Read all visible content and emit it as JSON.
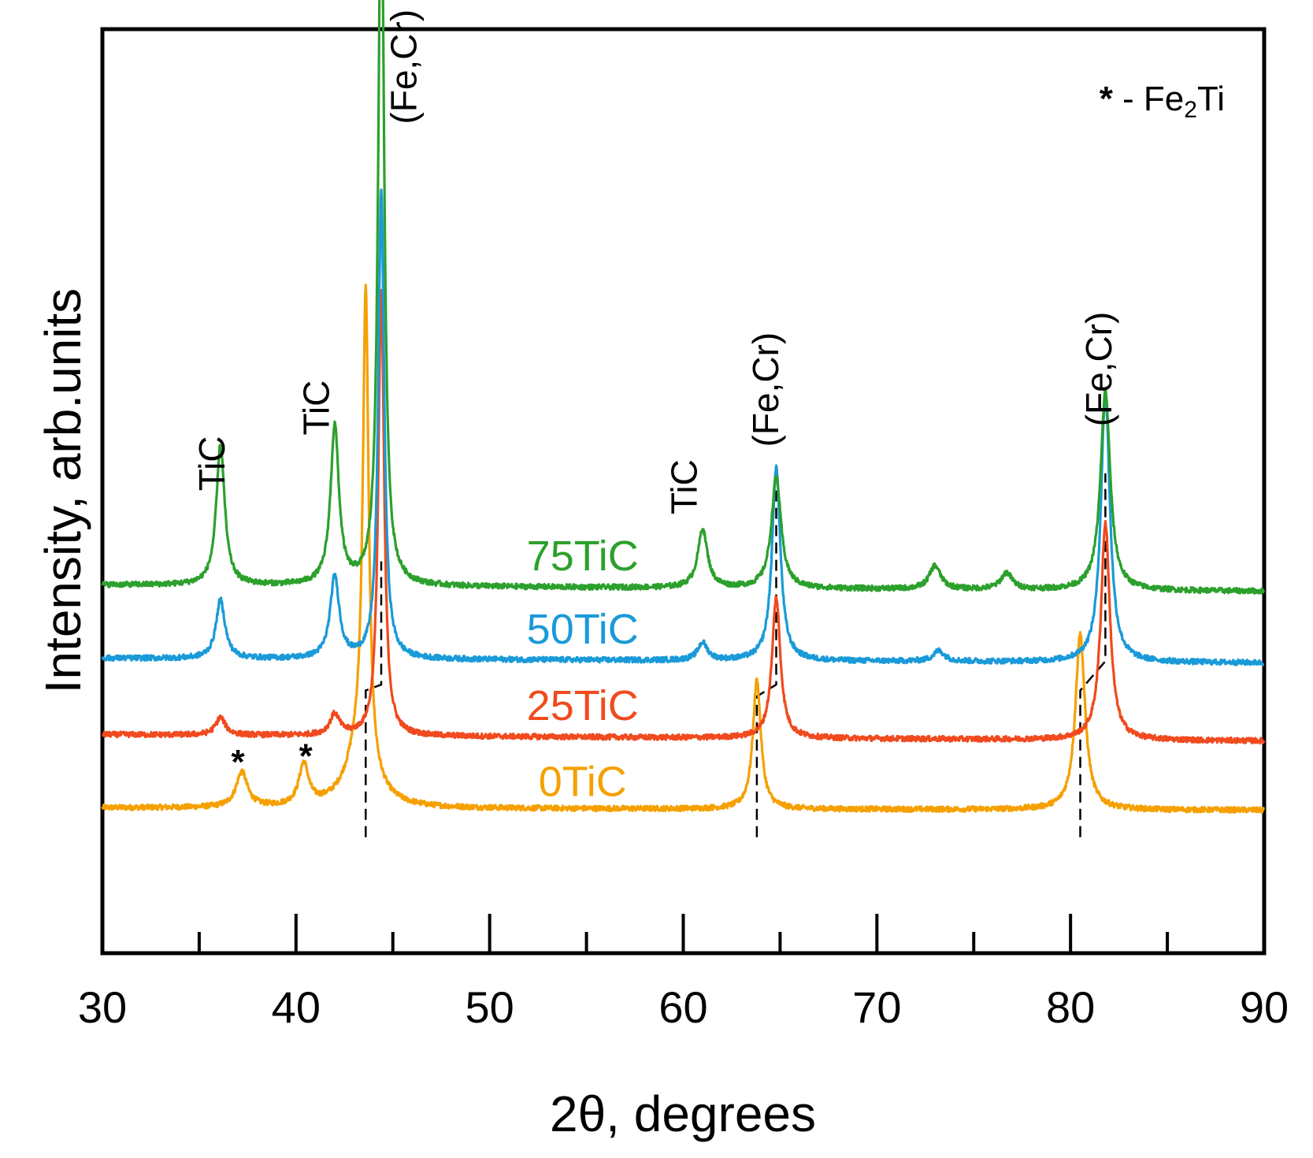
{
  "chart_data": {
    "type": "line",
    "title": "",
    "xlabel": "2θ, degrees",
    "ylabel": "Intensity, arb.units",
    "xlim": [
      30,
      90
    ],
    "x_ticks": [
      30,
      40,
      50,
      60,
      70,
      80,
      90
    ],
    "legend": {
      "symbol": "*",
      "text": " - Fe",
      "sub": "2",
      "tail": "Ti",
      "position": "top-right"
    },
    "series": [
      {
        "name": "0TiC",
        "color": "#f5a000",
        "offset": 0,
        "base": [
          [
            30,
            1.0
          ],
          [
            90,
            0.6
          ]
        ],
        "peaks": [
          {
            "x": 37.2,
            "h": 6,
            "w": 0.35
          },
          {
            "x": 40.4,
            "h": 7,
            "w": 0.3
          },
          {
            "x": 43.6,
            "h": 80,
            "w": 0.18
          },
          {
            "x": 43.3,
            "h": 10,
            "w": 0.8
          },
          {
            "x": 63.8,
            "h": 22,
            "w": 0.25
          },
          {
            "x": 80.5,
            "h": 30,
            "w": 0.3
          }
        ]
      },
      {
        "name": "25TiC",
        "color": "#f04a1e",
        "offset": 13,
        "base": [
          [
            30,
            0.5
          ],
          [
            90,
            -0.6
          ]
        ],
        "peaks": [
          {
            "x": 36.1,
            "h": 3,
            "w": 0.3
          },
          {
            "x": 42.0,
            "h": 3.5,
            "w": 0.3
          },
          {
            "x": 44.4,
            "h": 76,
            "w": 0.18
          },
          {
            "x": 64.8,
            "h": 24,
            "w": 0.26
          },
          {
            "x": 81.8,
            "h": 37,
            "w": 0.28
          }
        ]
      },
      {
        "name": "50TiC",
        "color": "#1a9ad8",
        "offset": 26,
        "base": [
          [
            30,
            0.5
          ],
          [
            90,
            -0.3
          ]
        ],
        "peaks": [
          {
            "x": 36.1,
            "h": 10,
            "w": 0.28
          },
          {
            "x": 42.0,
            "h": 14,
            "w": 0.28
          },
          {
            "x": 44.4,
            "h": 80,
            "w": 0.18
          },
          {
            "x": 61.0,
            "h": 3,
            "w": 0.3
          },
          {
            "x": 64.8,
            "h": 33,
            "w": 0.26
          },
          {
            "x": 73.2,
            "h": 1.8,
            "w": 0.35
          },
          {
            "x": 81.8,
            "h": 46,
            "w": 0.28
          }
        ]
      },
      {
        "name": "75TiC",
        "color": "#2ca02c",
        "offset": 38.5,
        "base": [
          [
            30,
            0.5
          ],
          [
            90,
            -0.6
          ]
        ],
        "peaks": [
          {
            "x": 36.1,
            "h": 24,
            "w": 0.26
          },
          {
            "x": 42.0,
            "h": 27,
            "w": 0.26
          },
          {
            "x": 44.4,
            "h": 126,
            "w": 0.18
          },
          {
            "x": 61.0,
            "h": 10,
            "w": 0.3
          },
          {
            "x": 64.8,
            "h": 19,
            "w": 0.3
          },
          {
            "x": 73.0,
            "h": 4,
            "w": 0.35
          },
          {
            "x": 76.7,
            "h": 2.8,
            "w": 0.35
          },
          {
            "x": 81.8,
            "h": 34,
            "w": 0.3
          }
        ]
      }
    ],
    "series_label_x": 53.5,
    "peak_labels": [
      {
        "text": "TiC",
        "x": 36.3,
        "y": 55
      },
      {
        "text": "TiC",
        "x": 41.7,
        "y": 64.5
      },
      {
        "text": "TiC",
        "x": 60.7,
        "y": 51
      },
      {
        "text": "(Fe,Cr)",
        "x": 46.2,
        "y": 117.5
      },
      {
        "text": "(Fe,Cr)",
        "x": 64.9,
        "y": 62.5
      },
      {
        "text": "(Fe,Cr)",
        "x": 82.1,
        "y": 66
      }
    ],
    "stars": [
      {
        "x": 37.0,
        "y": 9
      },
      {
        "x": 40.5,
        "y": 10
      }
    ],
    "guide_lines": [
      {
        "points": [
          [
            43.6,
            -4
          ],
          [
            43.6,
            21
          ],
          [
            44.4,
            22
          ],
          [
            44.4,
            43
          ]
        ]
      },
      {
        "points": [
          [
            63.8,
            -4
          ],
          [
            63.8,
            20
          ],
          [
            64.8,
            22
          ],
          [
            64.8,
            56
          ]
        ]
      },
      {
        "points": [
          [
            80.5,
            -4
          ],
          [
            80.5,
            21
          ],
          [
            81.8,
            26
          ],
          [
            81.8,
            58
          ]
        ]
      }
    ]
  }
}
